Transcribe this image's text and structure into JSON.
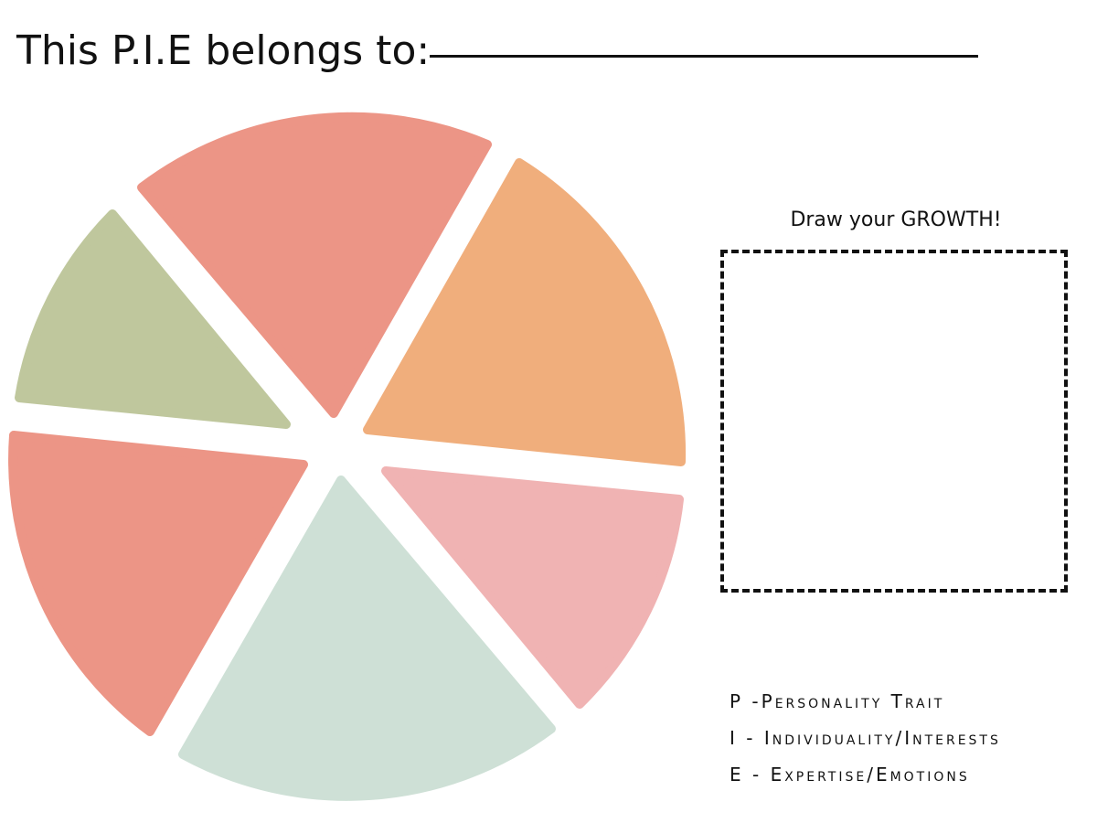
{
  "header": {
    "title": "This P.I.E belongs to:"
  },
  "pie": {
    "slices": [
      {
        "name": "top",
        "color": "#EC9586"
      },
      {
        "name": "upper-right",
        "color": "#F0AE7C"
      },
      {
        "name": "lower-right",
        "color": "#F0B3B3"
      },
      {
        "name": "bottom",
        "color": "#CEE0D6"
      },
      {
        "name": "lower-left",
        "color": "#EC9586"
      },
      {
        "name": "upper-left",
        "color": "#BFC79D"
      }
    ]
  },
  "growth": {
    "label": "Draw your GROWTH!"
  },
  "legend": {
    "items": [
      "P -Personality Trait",
      "I - Individuality/Interests",
      "E - Expertise/Emotions"
    ]
  }
}
